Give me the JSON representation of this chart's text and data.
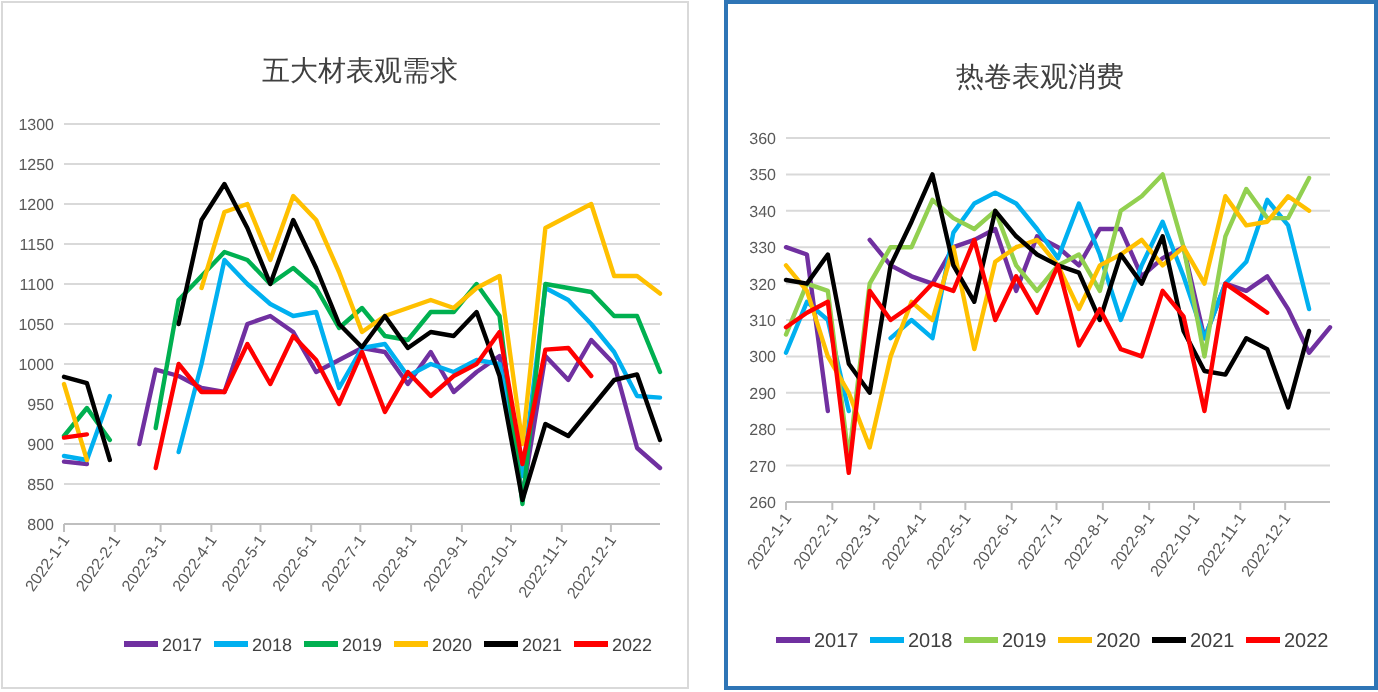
{
  "chart_data": [
    {
      "type": "line",
      "title": "五大材表观需求",
      "legend": "bottom",
      "grid": "y",
      "marker": "none",
      "line_style": "solid",
      "x": [
        "2022-01-01",
        "2022-01-15",
        "2022-01-29",
        "2022-02-16",
        "2022-02-26",
        "2022-03-12",
        "2022-03-26",
        "2022-04-09",
        "2022-04-23",
        "2022-05-07",
        "2022-05-21",
        "2022-06-04",
        "2022-06-18",
        "2022-07-02",
        "2022-07-16",
        "2022-07-30",
        "2022-08-13",
        "2022-08-27",
        "2022-09-10",
        "2022-09-24",
        "2022-10-08",
        "2022-10-22",
        "2022-11-05",
        "2022-11-19",
        "2022-12-03",
        "2022-12-17",
        "2022-12-31"
      ],
      "xlim": [
        "2022-01-01",
        "2022-12-31"
      ],
      "xticks": [
        {
          "value": "2022-01-01",
          "label": "2022-1-1"
        },
        {
          "value": "2022-02-01",
          "label": "2022-2-1"
        },
        {
          "value": "2022-03-01",
          "label": "2022-3-1"
        },
        {
          "value": "2022-04-01",
          "label": "2022-4-1"
        },
        {
          "value": "2022-05-01",
          "label": "2022-5-1"
        },
        {
          "value": "2022-06-01",
          "label": "2022-6-1"
        },
        {
          "value": "2022-07-01",
          "label": "2022-7-1"
        },
        {
          "value": "2022-08-01",
          "label": "2022-8-1"
        },
        {
          "value": "2022-09-01",
          "label": "2022-9-1"
        },
        {
          "value": "2022-10-01",
          "label": "2022-10-1"
        },
        {
          "value": "2022-11-01",
          "label": "2022-11-1"
        },
        {
          "value": "2022-12-01",
          "label": "2022-12-1"
        }
      ],
      "ylim": [
        800,
        1300
      ],
      "yticks": [
        800,
        850,
        900,
        950,
        1000,
        1050,
        1100,
        1150,
        1200,
        1250,
        1300
      ],
      "series": [
        {
          "name": "2017",
          "color": "#7030a0",
          "values": [
            878,
            875,
            null,
            900,
            993,
            985,
            970,
            965,
            1050,
            1060,
            1040,
            990,
            1005,
            1020,
            1015,
            975,
            1015,
            965,
            990,
            1010,
            835,
            1010,
            980,
            1030,
            1000,
            895,
            870
          ]
        },
        {
          "name": "2018",
          "color": "#00b0f0",
          "values": [
            885,
            880,
            960,
            null,
            null,
            890,
            1000,
            1130,
            1100,
            1075,
            1060,
            1065,
            970,
            1020,
            1025,
            985,
            1000,
            990,
            1005,
            1000,
            860,
            1095,
            1080,
            1050,
            1015,
            960,
            958
          ]
        },
        {
          "name": "2019",
          "color": "#00b050",
          "values": [
            910,
            945,
            905,
            null,
            920,
            1080,
            1110,
            1140,
            1130,
            1100,
            1120,
            1095,
            1045,
            1070,
            1035,
            1030,
            1065,
            1065,
            1100,
            1060,
            825,
            1100,
            1095,
            1090,
            1060,
            1060,
            990
          ]
        },
        {
          "name": "2020",
          "color": "#ffc000",
          "values": [
            975,
            880,
            null,
            null,
            null,
            null,
            1095,
            1190,
            1200,
            1130,
            1210,
            1180,
            1115,
            1040,
            1060,
            1070,
            1080,
            1070,
            1095,
            1110,
            900,
            1170,
            1185,
            1200,
            1110,
            1110,
            1088
          ]
        },
        {
          "name": "2021",
          "color": "#000000",
          "values": [
            984,
            976,
            880,
            null,
            null,
            1050,
            1180,
            1225,
            1170,
            1100,
            1180,
            1120,
            1050,
            1021,
            1060,
            1020,
            1040,
            1035,
            1065,
            985,
            830,
            925,
            910,
            945,
            980,
            987,
            905
          ]
        },
        {
          "name": "2022",
          "color": "#ff0000",
          "values": [
            908,
            912,
            null,
            null,
            870,
            1000,
            965,
            965,
            1025,
            975,
            1035,
            1005,
            950,
            1015,
            940,
            990,
            960,
            985,
            1000,
            1040,
            875,
            1018,
            1020,
            985,
            null,
            null,
            null
          ]
        }
      ]
    },
    {
      "type": "line",
      "title": "热卷表观消费",
      "legend": "bottom",
      "grid": "y",
      "marker": "none",
      "line_style": "solid",
      "x": [
        "2022-01-01",
        "2022-01-15",
        "2022-01-29",
        "2022-02-12",
        "2022-02-26",
        "2022-03-12",
        "2022-03-26",
        "2022-04-09",
        "2022-04-23",
        "2022-05-07",
        "2022-05-21",
        "2022-06-04",
        "2022-06-18",
        "2022-07-02",
        "2022-07-16",
        "2022-07-30",
        "2022-08-13",
        "2022-08-27",
        "2022-09-10",
        "2022-09-24",
        "2022-10-08",
        "2022-10-22",
        "2022-11-05",
        "2022-11-19",
        "2022-12-03",
        "2022-12-17",
        "2022-12-31"
      ],
      "xlim": [
        "2022-01-01",
        "2022-12-31"
      ],
      "xticks": [
        {
          "value": "2022-01-01",
          "label": "2022-1-1"
        },
        {
          "value": "2022-02-01",
          "label": "2022-2-1"
        },
        {
          "value": "2022-03-01",
          "label": "2022-3-1"
        },
        {
          "value": "2022-04-01",
          "label": "2022-4-1"
        },
        {
          "value": "2022-05-01",
          "label": "2022-5-1"
        },
        {
          "value": "2022-06-01",
          "label": "2022-6-1"
        },
        {
          "value": "2022-07-01",
          "label": "2022-7-1"
        },
        {
          "value": "2022-08-01",
          "label": "2022-8-1"
        },
        {
          "value": "2022-09-01",
          "label": "2022-9-1"
        },
        {
          "value": "2022-10-01",
          "label": "2022-10-1"
        },
        {
          "value": "2022-11-01",
          "label": "2022-11-1"
        },
        {
          "value": "2022-12-01",
          "label": "2022-12-1"
        }
      ],
      "ylim": [
        260,
        360
      ],
      "yticks": [
        260,
        270,
        280,
        290,
        300,
        310,
        320,
        330,
        340,
        350,
        360
      ],
      "series": [
        {
          "name": "2017",
          "color": "#7030a0",
          "values": [
            330,
            328,
            285,
            null,
            332,
            325,
            322,
            320,
            330,
            332,
            335,
            318,
            333,
            330,
            325,
            335,
            335,
            322,
            327,
            330,
            305,
            320,
            318,
            322,
            313,
            301,
            308
          ]
        },
        {
          "name": "2018",
          "color": "#00b0f0",
          "values": [
            301,
            315,
            310,
            285,
            null,
            305,
            310,
            305,
            334,
            342,
            345,
            342,
            335,
            327,
            342,
            328,
            310,
            325,
            337,
            322,
            305,
            320,
            326,
            343,
            336,
            313,
            null
          ]
        },
        {
          "name": "2019",
          "color": "#92d050",
          "values": [
            306,
            320,
            318,
            272,
            320,
            330,
            330,
            343,
            338,
            335,
            340,
            325,
            318,
            325,
            328,
            318,
            340,
            344,
            350,
            330,
            300,
            333,
            346,
            338,
            338,
            349,
            null
          ]
        },
        {
          "name": "2020",
          "color": "#ffc000",
          "values": [
            325,
            318,
            300,
            290,
            275,
            300,
            315,
            310,
            330,
            302,
            326,
            330,
            332,
            325,
            313,
            325,
            328,
            332,
            325,
            330,
            320,
            344,
            336,
            337,
            344,
            340,
            null
          ]
        },
        {
          "name": "2021",
          "color": "#000000",
          "values": [
            321,
            320,
            328,
            298,
            290,
            325,
            337,
            350,
            325,
            315,
            340,
            333,
            328,
            325,
            323,
            310,
            328,
            320,
            333,
            307,
            296,
            295,
            305,
            302,
            286,
            307,
            null
          ]
        },
        {
          "name": "2022",
          "color": "#ff0000",
          "values": [
            308,
            312,
            315,
            268,
            318,
            310,
            314,
            320,
            318,
            332,
            310,
            322,
            312,
            325,
            303,
            313,
            302,
            300,
            318,
            311,
            285,
            320,
            316,
            312,
            null,
            null,
            null
          ]
        }
      ]
    }
  ]
}
